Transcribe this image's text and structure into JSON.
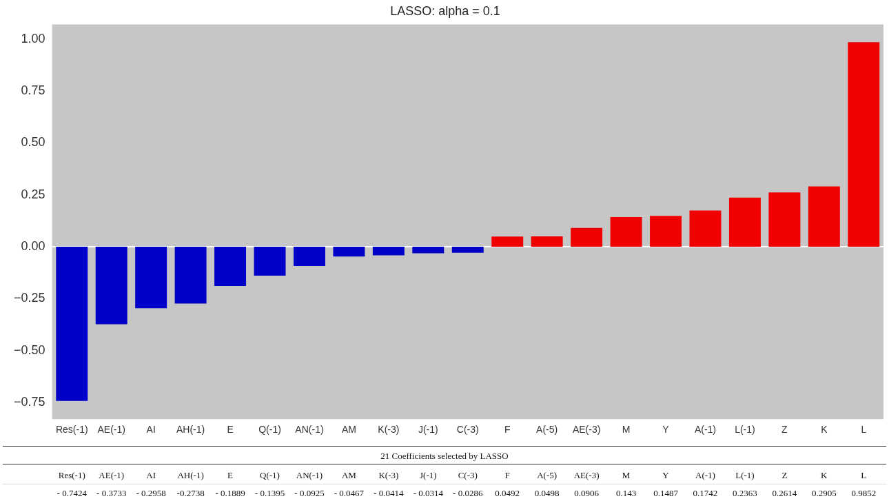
{
  "chart_data": {
    "type": "bar",
    "title": "LASSO: alpha = 0.1",
    "categories": [
      "Res(-1)",
      "AE(-1)",
      "AI",
      "AH(-1)",
      "E",
      "Q(-1)",
      "AN(-1)",
      "AM",
      "K(-3)",
      "J(-1)",
      "C(-3)",
      "F",
      "A(-5)",
      "AE(-3)",
      "M",
      "Y",
      "A(-1)",
      "L(-1)",
      "Z",
      "K",
      "L"
    ],
    "values": [
      -0.7424,
      -0.3733,
      -0.2958,
      -0.2738,
      -0.1889,
      -0.1395,
      -0.0925,
      -0.0467,
      -0.0414,
      -0.0314,
      -0.0286,
      0.0492,
      0.0498,
      0.0906,
      0.143,
      0.1487,
      0.1742,
      0.2363,
      0.2614,
      0.2905,
      0.9852
    ],
    "value_labels": [
      "- 0.7424",
      "- 0.3733",
      "- 0.2958",
      "-0.2738",
      "- 0.1889",
      "- 0.1395",
      "- 0.0925",
      "- 0.0467",
      "- 0.0414",
      "- 0.0314",
      "- 0.0286",
      "0.0492",
      "0.0498",
      "0.0906",
      "0.143",
      "0.1487",
      "0.1742",
      "0.2363",
      "0.2614",
      "0.2905",
      "0.9852"
    ],
    "colors": [
      "#0000c8",
      "#0000c8",
      "#0000c8",
      "#0000c8",
      "#0000c8",
      "#0000c8",
      "#0000c8",
      "#0000c8",
      "#0000c8",
      "#0000c8",
      "#0000c8",
      "#f00000",
      "#f00000",
      "#f00000",
      "#f00000",
      "#f00000",
      "#f00000",
      "#f00000",
      "#f00000",
      "#f00000",
      "#f00000"
    ],
    "ylim": [
      -0.83,
      1.07
    ],
    "yticks": [
      {
        "value": -0.75,
        "label": "−0.75"
      },
      {
        "value": -0.5,
        "label": "−0.50"
      },
      {
        "value": -0.25,
        "label": "−0.25"
      },
      {
        "value": 0,
        "label": "0.00"
      },
      {
        "value": 0.25,
        "label": "0.25"
      },
      {
        "value": 0.5,
        "label": "0.50"
      },
      {
        "value": 0.75,
        "label": "0.75"
      },
      {
        "value": 1,
        "label": "1.00"
      }
    ],
    "ref_lines": [
      {
        "axis": "y",
        "value": 0,
        "color": "#ffffff"
      }
    ],
    "annotations": [
      "21 Coefficients selected by LASSO"
    ],
    "grid": false,
    "legend": false
  }
}
